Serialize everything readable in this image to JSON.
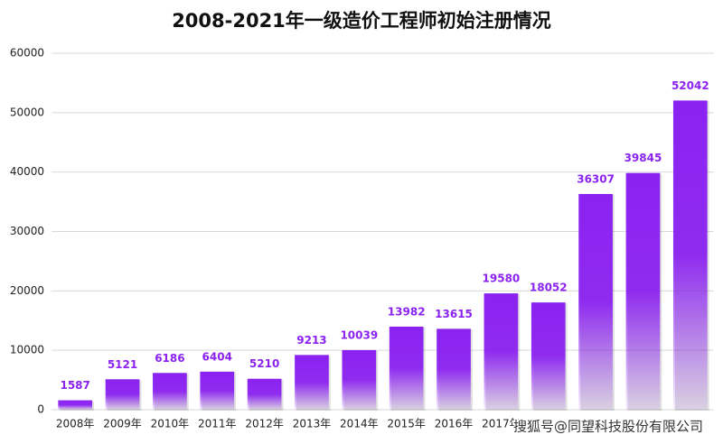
{
  "chart_data": {
    "type": "bar",
    "title": "2008-2021年一级造价工程师初始注册情况",
    "categories": [
      "2008年",
      "2009年",
      "2010年",
      "2011年",
      "2012年",
      "2013年",
      "2014年",
      "2015年",
      "2016年",
      "2017年",
      null,
      null,
      null,
      null
    ],
    "values": [
      1587,
      5121,
      6186,
      6404,
      5210,
      9213,
      10039,
      13982,
      13615,
      19580,
      18052,
      36307,
      39845,
      52042
    ],
    "color": "#8b22f0",
    "ylim": [
      0,
      60000
    ],
    "yticks": [
      0,
      10000,
      20000,
      30000,
      40000,
      50000,
      60000
    ],
    "grid": true,
    "watermark": "搜狐号@同望科技股份有限公司"
  }
}
